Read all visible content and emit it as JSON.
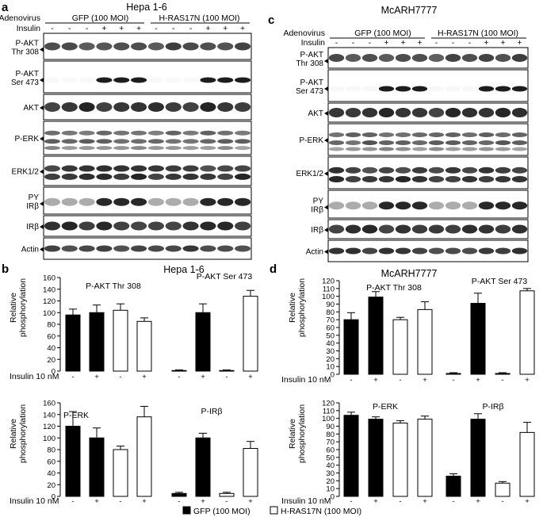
{
  "panels": {
    "a": {
      "letter": "a",
      "title": "Hepa 1-6",
      "treat1_label": "Adenovirus",
      "treat2_label": "Insulin",
      "group1": "GFP (100 MOI)",
      "group2": "H-RAS17N (100 MOI)",
      "insulin": [
        "-",
        "-",
        "-",
        "+",
        "+",
        "+",
        "-",
        "-",
        "-",
        "+",
        "+",
        "+"
      ],
      "rows": [
        "P-AKT Thr 308",
        "P-AKT Ser 473",
        "AKT",
        "P-ERK",
        "ERK1/2",
        "PY IRβ",
        "IRβ",
        "Actin"
      ]
    },
    "c": {
      "letter": "c",
      "title": "McARH7777",
      "treat1_label": "Adenovirus",
      "treat2_label": "Insulin",
      "group1": "GFP (100 MOI)",
      "group2": "H-RAS17N (100 MOI)",
      "insulin": [
        "-",
        "-",
        "-",
        "+",
        "+",
        "+",
        "-",
        "-",
        "-",
        "+",
        "+",
        "+"
      ],
      "rows": [
        "P-AKT Thr 308",
        "P-AKT Ser 473",
        "AKT",
        "P-ERK",
        "ERK1/2",
        "PY IRβ",
        "IRβ",
        "Actin"
      ]
    },
    "b": {
      "letter": "b",
      "title": "Hepa 1-6"
    },
    "d": {
      "letter": "d",
      "title": "McARH7777"
    }
  },
  "common": {
    "ylabel": "Relative phosphorylation",
    "insulin_axis_label": "Insulin 10 nM",
    "insulin_ticks": [
      "-",
      "+",
      "-",
      "+"
    ]
  },
  "legend": {
    "gfp": "GFP (100 MOI)",
    "ras": "H-RAS17N (100 MOI)",
    "gfp_color": "#000000",
    "ras_color": "#ffffff"
  },
  "chart_data": [
    {
      "type": "bar",
      "panel": "b",
      "title": "P-AKT Thr 308",
      "categories": [
        "GFP -",
        "GFP +",
        "H-RAS17N -",
        "H-RAS17N +"
      ],
      "values": [
        96,
        100,
        104,
        85
      ],
      "errors": [
        10,
        13,
        11,
        6
      ],
      "ylim": [
        0,
        160
      ],
      "yticks": [
        0,
        20,
        40,
        60,
        80,
        100,
        120,
        140,
        160
      ]
    },
    {
      "type": "bar",
      "panel": "b",
      "title": "P-AKT Ser 473",
      "categories": [
        "GFP -",
        "GFP +",
        "H-RAS17N -",
        "H-RAS17N +"
      ],
      "values": [
        1,
        100,
        1,
        128
      ],
      "errors": [
        1,
        15,
        1,
        10
      ],
      "ylim": [
        0,
        160
      ]
    },
    {
      "type": "bar",
      "panel": "b",
      "title": "P-ERK",
      "categories": [
        "GFP -",
        "GFP +",
        "H-RAS17N -",
        "H-RAS17N +"
      ],
      "values": [
        120,
        100,
        80,
        136
      ],
      "errors": [
        25,
        17,
        6,
        18
      ],
      "ylim": [
        0,
        160
      ],
      "yticks": [
        0,
        20,
        40,
        60,
        80,
        100,
        120,
        140,
        160
      ]
    },
    {
      "type": "bar",
      "panel": "b",
      "title": "P-IRβ",
      "categories": [
        "GFP -",
        "GFP +",
        "H-RAS17N -",
        "H-RAS17N +"
      ],
      "values": [
        5,
        100,
        5,
        82
      ],
      "errors": [
        2,
        8,
        2,
        12
      ],
      "ylim": [
        0,
        160
      ]
    },
    {
      "type": "bar",
      "panel": "d",
      "title": "P-AKT Thr 308",
      "categories": [
        "GFP -",
        "GFP +",
        "H-RAS17N -",
        "H-RAS17N +"
      ],
      "values": [
        70,
        99,
        70,
        83
      ],
      "errors": [
        9,
        7,
        3,
        10
      ],
      "ylim": [
        0,
        120
      ],
      "yticks": [
        0,
        10,
        20,
        30,
        40,
        50,
        60,
        70,
        80,
        90,
        100,
        110,
        120
      ]
    },
    {
      "type": "bar",
      "panel": "d",
      "title": "P-AKT Ser 473",
      "categories": [
        "GFP -",
        "GFP +",
        "H-RAS17N -",
        "H-RAS17N +"
      ],
      "values": [
        1,
        91,
        1,
        107
      ],
      "errors": [
        1,
        13,
        1,
        3
      ],
      "ylim": [
        0,
        120
      ]
    },
    {
      "type": "bar",
      "panel": "d",
      "title": "P-ERK",
      "categories": [
        "GFP -",
        "GFP +",
        "H-RAS17N -",
        "H-RAS17N +"
      ],
      "values": [
        104,
        99,
        94,
        99
      ],
      "errors": [
        4,
        3,
        3,
        4
      ],
      "ylim": [
        0,
        120
      ],
      "yticks": [
        0,
        10,
        20,
        30,
        40,
        50,
        60,
        70,
        80,
        90,
        100,
        110,
        120
      ]
    },
    {
      "type": "bar",
      "panel": "d",
      "title": "P-IRβ",
      "categories": [
        "GFP -",
        "GFP +",
        "H-RAS17N -",
        "H-RAS17N +"
      ],
      "values": [
        26,
        99,
        17,
        82
      ],
      "errors": [
        3,
        7,
        2,
        13
      ],
      "ylim": [
        0,
        120
      ]
    }
  ]
}
